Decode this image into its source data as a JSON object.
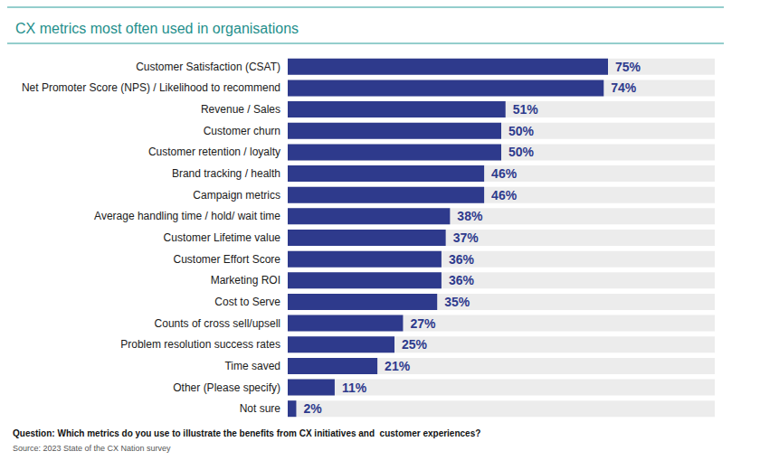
{
  "chart_data": {
    "type": "bar",
    "orientation": "horizontal",
    "title": "CX metrics most often used in organisations",
    "categories": [
      "Customer Satisfaction (CSAT)",
      "Net Promoter Score (NPS) / Likelihood to recommend",
      "Revenue / Sales",
      "Customer churn",
      "Customer retention / loyalty",
      "Brand tracking / health",
      "Campaign metrics",
      "Average handling time / hold/ wait time",
      "Customer Lifetime value",
      "Customer Effort Score",
      "Marketing ROI",
      "Cost to Serve",
      "Counts of cross sell/upsell",
      "Problem resolution success rates",
      "Time saved",
      "Other (Please specify)",
      "Not sure"
    ],
    "values": [
      75,
      74,
      51,
      50,
      50,
      46,
      46,
      38,
      37,
      36,
      36,
      35,
      27,
      25,
      21,
      11,
      2
    ],
    "value_labels": [
      "75%",
      "74%",
      "51%",
      "50%",
      "50%",
      "46%",
      "46%",
      "38%",
      "37%",
      "36%",
      "36%",
      "35%",
      "27%",
      "25%",
      "21%",
      "11%",
      "2%"
    ],
    "data_labels": true,
    "color": "#2e3a8c",
    "xlim": [
      0,
      100
    ],
    "grid": false,
    "tick_labels": "y",
    "annotations": [
      "Question: Which metrics do you use to illustrate the benefits from CX initiatives and  customer experiences?",
      "Source: 2023 State of the CX Nation survey"
    ]
  }
}
